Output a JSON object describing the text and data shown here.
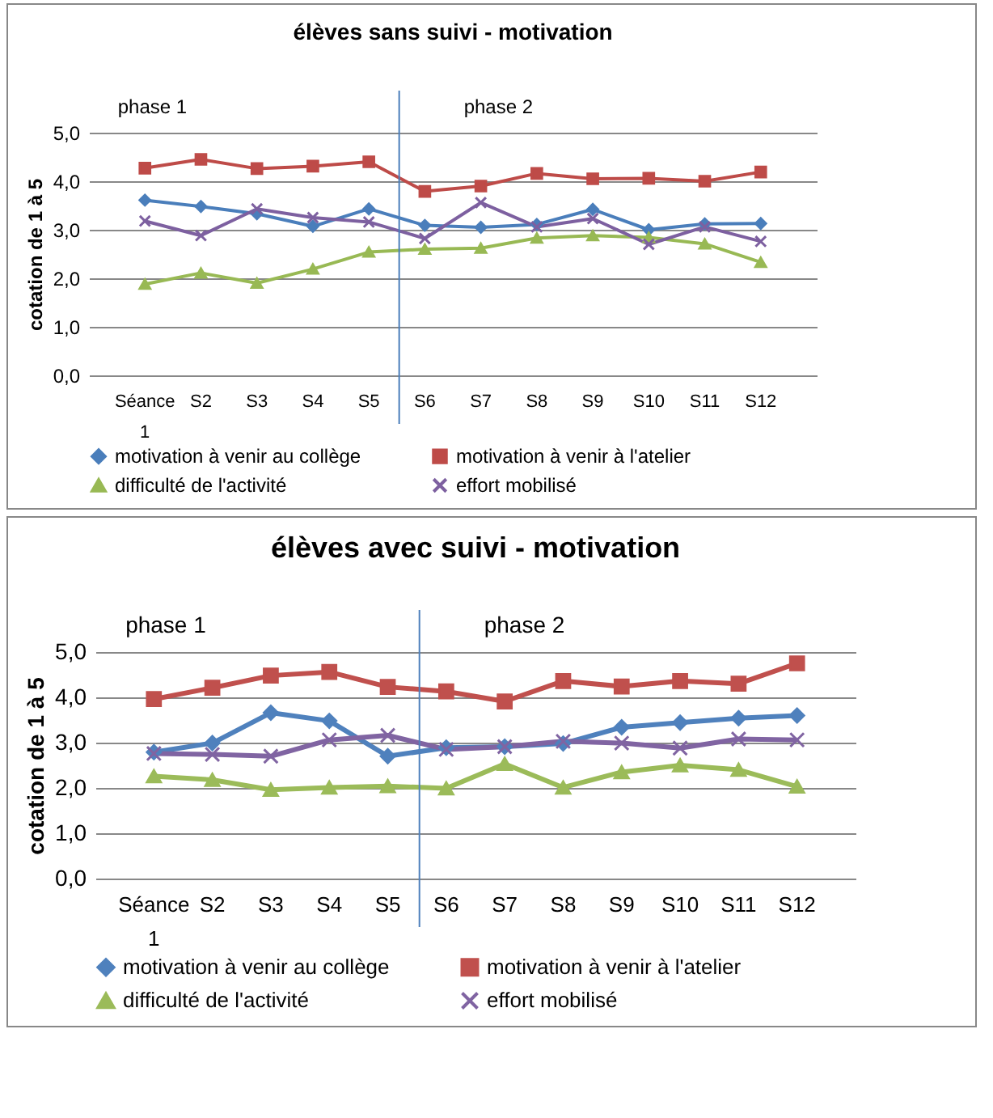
{
  "chart_data": [
    {
      "type": "line",
      "title": "élèves sans suivi - motivation",
      "ylabel": "cotation de 1 à 5",
      "categories": [
        "Séance 1",
        "S2",
        "S3",
        "S4",
        "S5",
        "S6",
        "S7",
        "S8",
        "S9",
        "S10",
        "S11",
        "S12"
      ],
      "series": [
        {
          "name": "motivation à venir au collège",
          "color": "#4a7ebb",
          "marker": "diamond",
          "values": [
            3.61,
            3.48,
            3.33,
            3.07,
            3.43,
            3.09,
            3.05,
            3.11,
            3.42,
            3.0,
            3.12,
            3.13
          ]
        },
        {
          "name": "motivation à venir à l'atelier",
          "color": "#be4b48",
          "marker": "square",
          "values": [
            4.27,
            4.45,
            4.26,
            4.31,
            4.4,
            3.79,
            3.9,
            4.16,
            4.05,
            4.06,
            4.0,
            4.19
          ]
        },
        {
          "name": "difficulté de l'activité",
          "color": "#98b954",
          "marker": "triangle",
          "values": [
            1.88,
            2.11,
            1.9,
            2.19,
            2.54,
            2.6,
            2.62,
            2.83,
            2.88,
            2.84,
            2.71,
            2.33
          ]
        },
        {
          "name": "effort mobilisé",
          "color": "#7d60a0",
          "marker": "cross",
          "values": [
            3.18,
            2.88,
            3.43,
            3.25,
            3.16,
            2.82,
            3.56,
            3.06,
            3.23,
            2.7,
            3.06,
            2.76
          ]
        }
      ],
      "ylim": [
        0,
        5
      ],
      "yticks": [
        {
          "value": 0,
          "label": "0,0"
        },
        {
          "value": 1,
          "label": "1,0"
        },
        {
          "value": 2,
          "label": "2,0"
        },
        {
          "value": 3,
          "label": "3,0"
        },
        {
          "value": 4,
          "label": "4,0"
        },
        {
          "value": 5,
          "label": "5,0"
        }
      ],
      "grid": "y",
      "legend": "bottom",
      "ref_lines": [
        {
          "axis": "x",
          "value": "S5",
          "color": "#4a7ebb"
        }
      ],
      "annotations": [
        "phase 1",
        "phase 2"
      ]
    },
    {
      "type": "line",
      "title": "élèves avec suivi - motivation",
      "ylabel": "cotation de 1 à 5",
      "categories": [
        "Séance 1",
        "S2",
        "S3",
        "S4",
        "S5",
        "S6",
        "S7",
        "S8",
        "S9",
        "S10",
        "S11",
        "S12"
      ],
      "series": [
        {
          "name": "motivation à venir au collège",
          "color": "#4f81bd",
          "marker": "diamond",
          "values": [
            2.79,
            2.99,
            3.66,
            3.48,
            2.7,
            2.89,
            2.91,
            2.98,
            3.34,
            3.44,
            3.54,
            3.6
          ]
        },
        {
          "name": "motivation à venir à l'atelier",
          "color": "#c0504d",
          "marker": "square",
          "values": [
            3.96,
            4.21,
            4.48,
            4.56,
            4.23,
            4.13,
            3.91,
            4.36,
            4.24,
            4.36,
            4.3,
            4.75
          ]
        },
        {
          "name": "difficulté de l'activité",
          "color": "#9bbb59",
          "marker": "triangle",
          "values": [
            2.26,
            2.18,
            1.96,
            2.01,
            2.04,
            1.99,
            2.53,
            2.01,
            2.35,
            2.5,
            2.4,
            2.03
          ]
        },
        {
          "name": "effort mobilisé",
          "color": "#8064a2",
          "marker": "cross",
          "values": [
            2.76,
            2.74,
            2.7,
            3.06,
            3.16,
            2.85,
            2.91,
            3.03,
            2.99,
            2.88,
            3.08,
            3.06
          ]
        }
      ],
      "ylim": [
        0,
        5
      ],
      "yticks": [
        {
          "value": 0,
          "label": "0,0"
        },
        {
          "value": 1,
          "label": "1,0"
        },
        {
          "value": 2,
          "label": "2,0"
        },
        {
          "value": 3,
          "label": "3,0"
        },
        {
          "value": 4,
          "label": "4,0"
        },
        {
          "value": 5,
          "label": "5,0"
        }
      ],
      "grid": "y",
      "legend": "bottom",
      "ref_lines": [
        {
          "axis": "x",
          "value": "S5",
          "color": "#4f81bd"
        }
      ],
      "annotations": [
        "phase 1",
        "phase 2"
      ]
    }
  ]
}
